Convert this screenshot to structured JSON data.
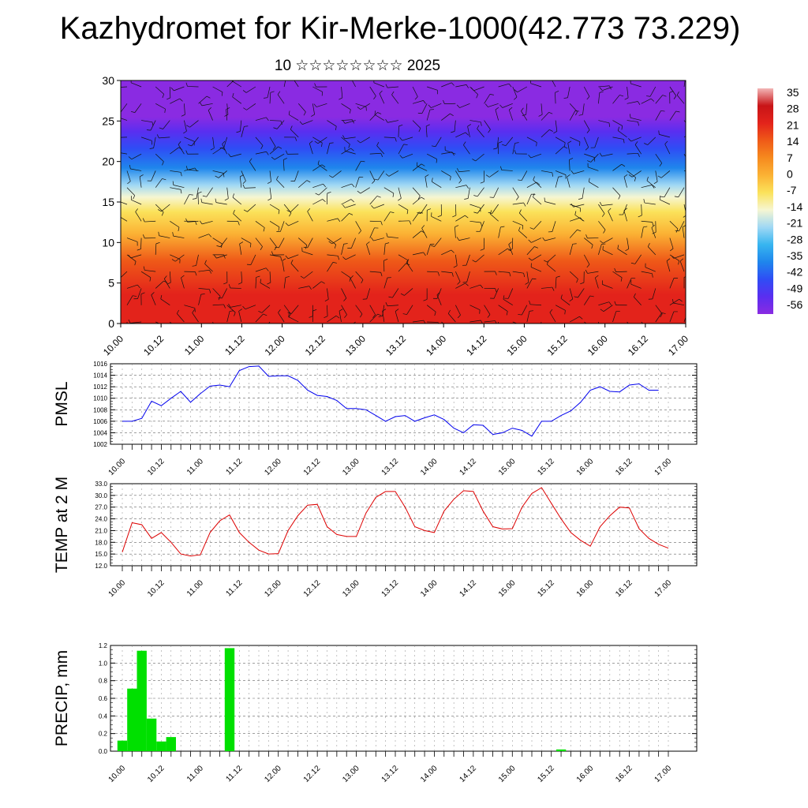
{
  "title": "Kazhydromet for Kir-Merke-1000(42.773 73.229)",
  "subtitle": "10 ☆☆☆☆☆☆☆☆ 2025",
  "time_labels": [
    "10.00",
    "10.12",
    "11.00",
    "11.12",
    "12.00",
    "12.12",
    "13.00",
    "13.12",
    "14.00",
    "14.12",
    "15.00",
    "15.12",
    "16.00",
    "16.12",
    "17.00"
  ],
  "colorbar": {
    "labels": [
      "35",
      "28",
      "21",
      "14",
      "7",
      "0",
      "-7",
      "-14",
      "-21",
      "-28",
      "-35",
      "-42",
      "-49",
      "-56"
    ]
  },
  "chart_data": [
    {
      "type": "heatmap",
      "name": "temperature cross-section with wind barbs",
      "ylim": [
        0,
        30
      ],
      "yticks": [
        0,
        5,
        10,
        15,
        20,
        25,
        30
      ],
      "x_tick_labels": [
        "10.00",
        "10.12",
        "11.00",
        "11.12",
        "12.00",
        "12.12",
        "13.00",
        "13.12",
        "14.00",
        "14.12",
        "15.00",
        "15.12",
        "16.00",
        "16.12",
        "17.00"
      ],
      "colorbar_range": [
        -56,
        35
      ],
      "colorbar_ticks": [
        35,
        28,
        21,
        14,
        7,
        0,
        -7,
        -14,
        -21,
        -28,
        -35,
        -42,
        -49,
        -56
      ],
      "color_stops": [
        {
          "value": -56,
          "color": "#8a2be2"
        },
        {
          "value": -49,
          "color": "#5a2ef0"
        },
        {
          "value": -42,
          "color": "#2f4df5"
        },
        {
          "value": -35,
          "color": "#1f86ec"
        },
        {
          "value": -28,
          "color": "#37b5f0"
        },
        {
          "value": -21,
          "color": "#9fd8f4"
        },
        {
          "value": -14,
          "color": "#f6f6d2"
        },
        {
          "value": -7,
          "color": "#fbe25a"
        },
        {
          "value": 0,
          "color": "#fbb234"
        },
        {
          "value": 7,
          "color": "#f68a1e"
        },
        {
          "value": 14,
          "color": "#ef5a18"
        },
        {
          "value": 21,
          "color": "#e3231b"
        },
        {
          "value": 28,
          "color": "#c81417"
        },
        {
          "value": 35,
          "color": "#f2b6b6"
        }
      ]
    },
    {
      "type": "line",
      "ylabel": "PMSL",
      "ylim": [
        1002,
        1016
      ],
      "yticks": [
        "1002",
        "1004",
        "1006",
        "1008",
        "1010",
        "1012",
        "1014",
        "1016"
      ],
      "x_tick_labels": [
        "10.00",
        "10.12",
        "11.00",
        "11.12",
        "12.00",
        "12.12",
        "13.00",
        "13.12",
        "14.00",
        "14.12",
        "15.00",
        "15.12",
        "16.00",
        "16.12",
        "17.00"
      ],
      "line_color": "#0000ee",
      "x_step_hours": 3,
      "values": [
        1006,
        1006,
        1006.5,
        1009.5,
        1008.7,
        1010,
        1011.2,
        1009.3,
        1010.8,
        1012.1,
        1012.3,
        1012,
        1014.8,
        1015.5,
        1015.6,
        1013.8,
        1013.9,
        1013.9,
        1013.1,
        1011.4,
        1010.5,
        1010.3,
        1009.6,
        1008.2,
        1008.2,
        1008,
        1007,
        1006,
        1006.8,
        1007,
        1006,
        1006.6,
        1007.1,
        1006.3,
        1004.8,
        1004,
        1005.4,
        1005.3,
        1003.7,
        1004,
        1004.8,
        1004.4,
        1003.4,
        1006,
        1006,
        1007,
        1007.8,
        1009.3,
        1011.4,
        1012,
        1011.2,
        1011.1,
        1012.3,
        1012.5,
        1011.4,
        1011.4
      ]
    },
    {
      "type": "line",
      "ylabel": "TEMP at 2 M",
      "ylim": [
        12,
        33
      ],
      "yticks": [
        "12.0",
        "15.0",
        "18.0",
        "21.0",
        "24.0",
        "27.0",
        "30.0",
        "33.0"
      ],
      "x_tick_labels": [
        "10.00",
        "10.12",
        "11.00",
        "11.12",
        "12.00",
        "12.12",
        "13.00",
        "13.12",
        "14.00",
        "14.12",
        "15.00",
        "15.12",
        "16.00",
        "16.12",
        "17.00"
      ],
      "line_color": "#dd0000",
      "x_step_hours": 3,
      "values": [
        15.5,
        23,
        22.5,
        19,
        20.5,
        18,
        15,
        14.5,
        14.8,
        20.5,
        23.5,
        25,
        20.5,
        18,
        16,
        15,
        15.1,
        21,
        24.8,
        27.5,
        27.7,
        22,
        20,
        19.5,
        19.5,
        25.5,
        29.5,
        31,
        31,
        27,
        22,
        21,
        20.5,
        26,
        29,
        31.2,
        31,
        26,
        22,
        21.4,
        21.5,
        27,
        30.5,
        32,
        28,
        24,
        20.5,
        18.5,
        17,
        22,
        24.8,
        27,
        26.8,
        21.5,
        19,
        17.5,
        16.5
      ]
    },
    {
      "type": "bar",
      "ylabel": "PRECIP, mm",
      "ylim": [
        0,
        1.2
      ],
      "yticks": [
        "0.0",
        "0.2",
        "0.4",
        "0.6",
        "0.8",
        "1.0",
        "1.2"
      ],
      "x_tick_labels": [
        "10.00",
        "10.12",
        "11.00",
        "11.12",
        "12.00",
        "12.12",
        "13.00",
        "13.12",
        "14.00",
        "14.12",
        "15.00",
        "15.12",
        "16.00",
        "16.12",
        "17.00"
      ],
      "bar_color": "#00e000",
      "x_step_hours": 3,
      "values": [
        0.12,
        0.71,
        1.14,
        0.37,
        0.11,
        0.16,
        0,
        0,
        0,
        0,
        0,
        1.17,
        0,
        0,
        0,
        0,
        0,
        0,
        0,
        0,
        0,
        0,
        0,
        0,
        0,
        0,
        0,
        0,
        0,
        0,
        0,
        0,
        0,
        0,
        0,
        0,
        0,
        0,
        0,
        0,
        0,
        0,
        0,
        0,
        0,
        0.02,
        0,
        0,
        0,
        0,
        0,
        0,
        0,
        0,
        0,
        0
      ]
    }
  ]
}
